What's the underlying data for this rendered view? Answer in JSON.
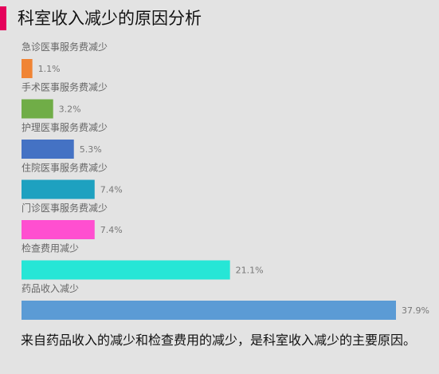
{
  "title": "科室收入减少的原因分析",
  "footer_text": "来自药品收入的减少和检查费用的减少，是科室收入减少的主要原因。",
  "chart_data": {
    "type": "bar",
    "orientation": "horizontal",
    "title": "科室收入减少的原因分析",
    "categories": [
      "急诊医事服务费减少",
      "手术医事服务费减少",
      "护理医事服务费减少",
      "住院医事服务费减少",
      "门诊医事服务费减少",
      "检查费用减少",
      "药品收入减少"
    ],
    "values": [
      1.1,
      3.2,
      5.3,
      7.4,
      7.4,
      21.1,
      37.9
    ],
    "value_labels": [
      "1.1%",
      "3.2%",
      "5.3%",
      "7.4%",
      "7.4%",
      "21.1%",
      "37.9%"
    ],
    "colors": [
      "#f08434",
      "#70ad47",
      "#4472c4",
      "#1ea1c0",
      "#ff4fd0",
      "#26e6d6",
      "#5b9bd5"
    ],
    "unit": "%",
    "xlim": [
      0,
      37.9
    ],
    "grid": false,
    "legend": "none"
  }
}
